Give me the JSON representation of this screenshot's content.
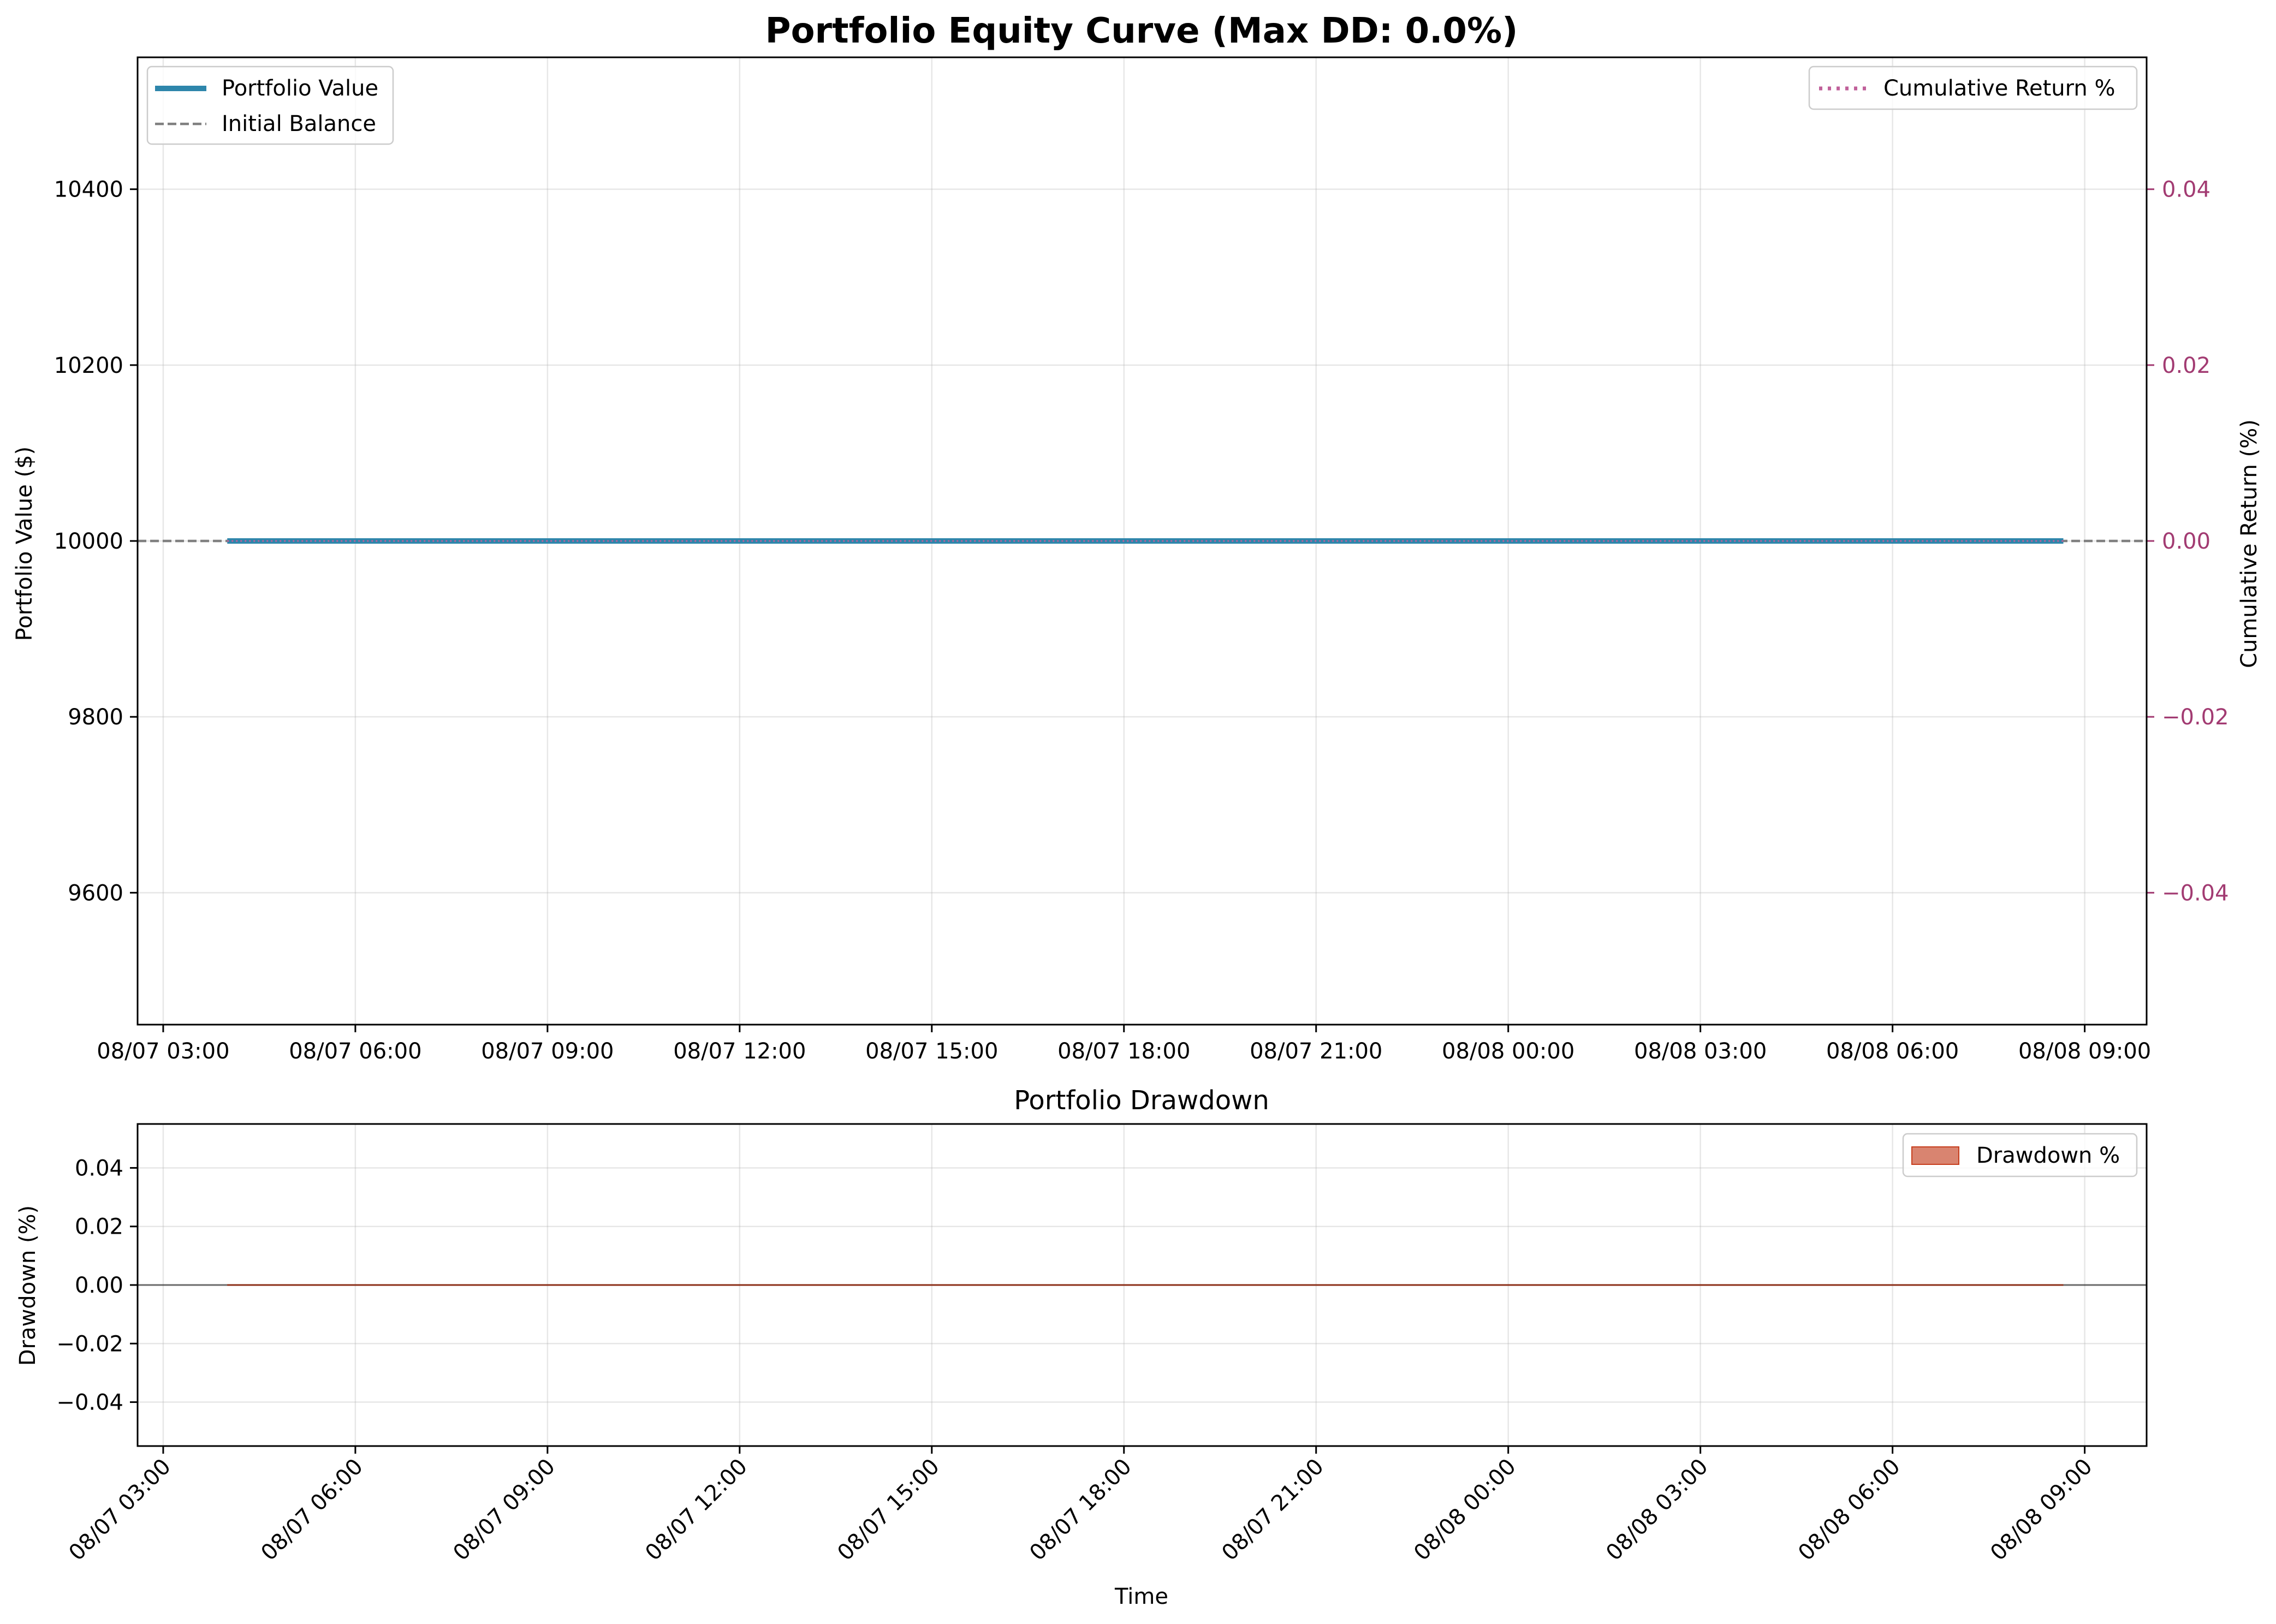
{
  "chart_data": [
    {
      "type": "line",
      "title": "Portfolio Equity Curve (Max DD: 0.0%)",
      "xlabel": "",
      "ylabel": "Portfolio Value ($)",
      "y2label": "Cumulative Return (%)",
      "x_tick_labels": [
        "08/07 03:00",
        "08/07 06:00",
        "08/07 09:00",
        "08/07 12:00",
        "08/07 15:00",
        "08/07 18:00",
        "08/07 21:00",
        "08/08 00:00",
        "08/08 03:00",
        "08/08 06:00",
        "08/08 09:00"
      ],
      "y_tick_labels": [
        "9600",
        "9800",
        "10000",
        "10200",
        "10400"
      ],
      "y2_tick_labels": [
        "−0.04",
        "−0.02",
        "0.00",
        "0.02",
        "0.04"
      ],
      "xlim": [
        "08/07 02:36",
        "08/08 09:58"
      ],
      "ylim": [
        9450,
        10550
      ],
      "y2lim": [
        -0.055,
        0.055
      ],
      "grid": true,
      "series": [
        {
          "name": "Portfolio Value",
          "axis": "left",
          "color": "#2E86AB",
          "style": "solid",
          "x": [
            "08/07 04:00",
            "08/08 08:40"
          ],
          "values": [
            10000,
            10000
          ]
        },
        {
          "name": "Initial Balance",
          "axis": "left",
          "color": "#808080",
          "style": "dashed",
          "value": 10000
        },
        {
          "name": "Cumulative Return %",
          "axis": "right",
          "color": "#C0609A",
          "style": "dotted",
          "x": [
            "08/07 04:00",
            "08/08 08:40"
          ],
          "values": [
            0.0,
            0.0
          ]
        }
      ],
      "legend": [
        {
          "placement": "top-left",
          "entries": [
            "Portfolio Value",
            "Initial Balance"
          ]
        },
        {
          "placement": "top-right",
          "entries": [
            "Cumulative Return %"
          ]
        }
      ],
      "right_axis_color": "#A23B72"
    },
    {
      "type": "area",
      "title": "Portfolio Drawdown",
      "xlabel": "Time",
      "ylabel": "Drawdown (%)",
      "x_tick_labels": [
        "08/07 03:00",
        "08/07 06:00",
        "08/07 09:00",
        "08/07 12:00",
        "08/07 15:00",
        "08/07 18:00",
        "08/07 21:00",
        "08/08 00:00",
        "08/08 03:00",
        "08/08 06:00",
        "08/08 09:00"
      ],
      "y_tick_labels": [
        "−0.04",
        "−0.02",
        "0.00",
        "0.02",
        "0.04"
      ],
      "xlim": [
        "08/07 02:36",
        "08/08 09:58"
      ],
      "ylim": [
        -0.055,
        0.055
      ],
      "grid": true,
      "series": [
        {
          "name": "Drawdown %",
          "color": "#C73E1D",
          "x": [
            "08/07 04:00",
            "08/08 08:40"
          ],
          "values": [
            0.0,
            0.0
          ]
        }
      ],
      "legend": [
        {
          "placement": "top-right",
          "entries": [
            "Drawdown %"
          ]
        }
      ],
      "zero_line_color": "#000000"
    }
  ]
}
